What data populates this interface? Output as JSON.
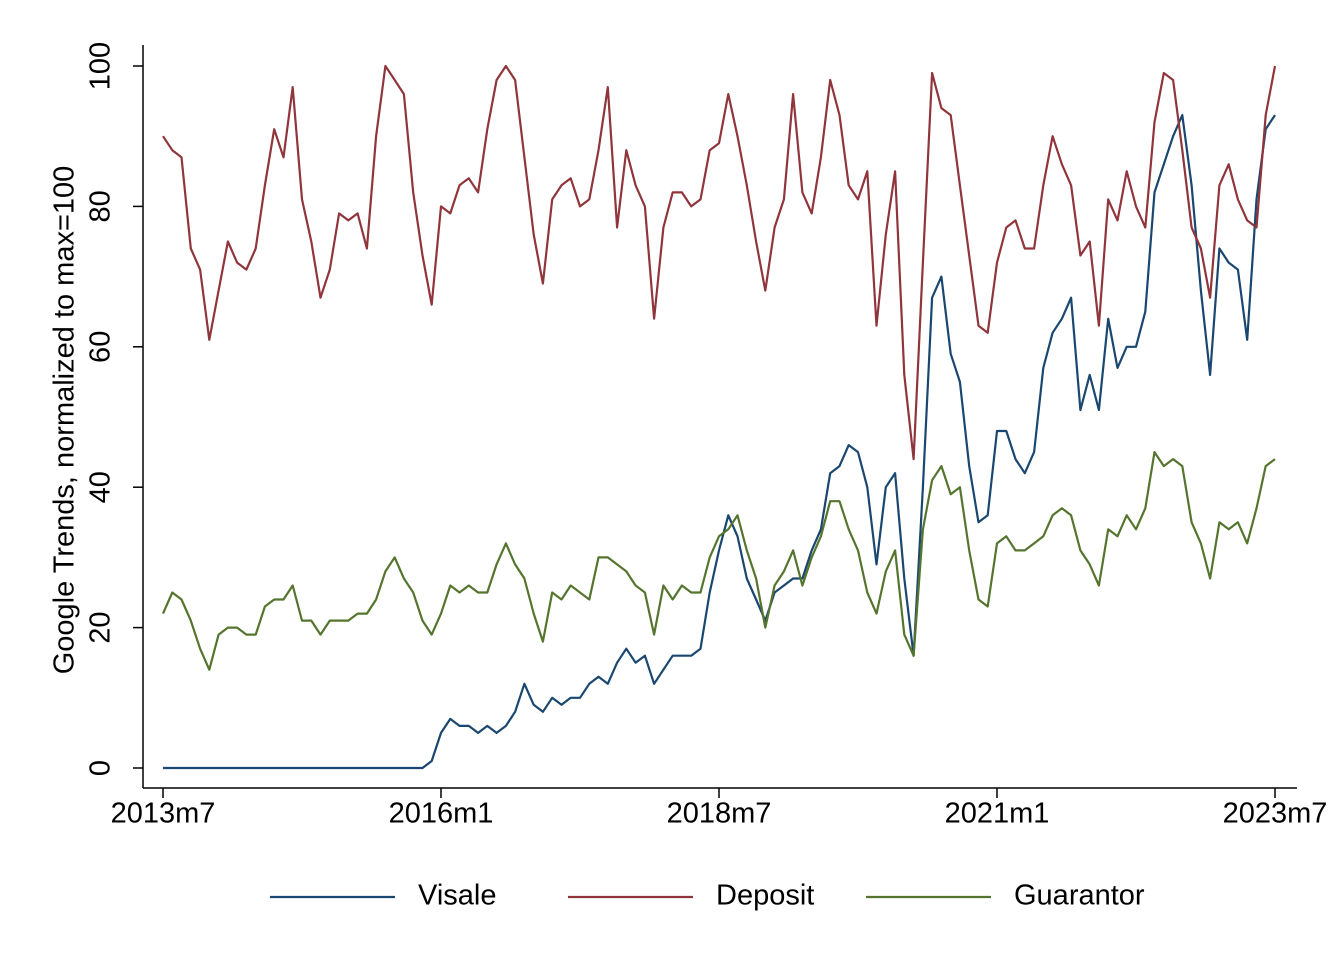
{
  "chart_data": {
    "type": "line",
    "y_label": "Google Trends, normalized to max=100",
    "x": [
      "2013m7",
      "2013m8",
      "2013m9",
      "2013m10",
      "2013m11",
      "2013m12",
      "2014m1",
      "2014m2",
      "2014m3",
      "2014m4",
      "2014m5",
      "2014m6",
      "2014m7",
      "2014m8",
      "2014m9",
      "2014m10",
      "2014m11",
      "2014m12",
      "2015m1",
      "2015m2",
      "2015m3",
      "2015m4",
      "2015m5",
      "2015m6",
      "2015m7",
      "2015m8",
      "2015m9",
      "2015m10",
      "2015m11",
      "2015m12",
      "2016m1",
      "2016m2",
      "2016m3",
      "2016m4",
      "2016m5",
      "2016m6",
      "2016m7",
      "2016m8",
      "2016m9",
      "2016m10",
      "2016m11",
      "2016m12",
      "2017m1",
      "2017m2",
      "2017m3",
      "2017m4",
      "2017m5",
      "2017m6",
      "2017m7",
      "2017m8",
      "2017m9",
      "2017m10",
      "2017m11",
      "2017m12",
      "2018m1",
      "2018m2",
      "2018m3",
      "2018m4",
      "2018m5",
      "2018m6",
      "2018m7",
      "2018m8",
      "2018m9",
      "2018m10",
      "2018m11",
      "2018m12",
      "2019m1",
      "2019m2",
      "2019m3",
      "2019m4",
      "2019m5",
      "2019m6",
      "2019m7",
      "2019m8",
      "2019m9",
      "2019m10",
      "2019m11",
      "2019m12",
      "2020m1",
      "2020m2",
      "2020m3",
      "2020m4",
      "2020m5",
      "2020m6",
      "2020m7",
      "2020m8",
      "2020m9",
      "2020m10",
      "2020m11",
      "2020m12",
      "2021m1",
      "2021m2",
      "2021m3",
      "2021m4",
      "2021m5",
      "2021m6",
      "2021m7",
      "2021m8",
      "2021m9",
      "2021m10",
      "2021m11",
      "2021m12",
      "2022m1",
      "2022m2",
      "2022m3",
      "2022m4",
      "2022m5",
      "2022m6",
      "2022m7",
      "2022m8",
      "2022m9",
      "2022m10",
      "2022m11",
      "2022m12",
      "2023m1",
      "2023m2",
      "2023m3",
      "2023m4",
      "2023m5",
      "2023m6",
      "2023m7"
    ],
    "xticks": [
      "2013m7",
      "2016m1",
      "2018m7",
      "2021m1",
      "2023m7"
    ],
    "ylim": [
      0,
      100
    ],
    "yticks": [
      0,
      20,
      40,
      60,
      80,
      100
    ],
    "series": [
      {
        "name": "Visale",
        "color": "#1a476f",
        "values": [
          0,
          0,
          0,
          0,
          0,
          0,
          0,
          0,
          0,
          0,
          0,
          0,
          0,
          0,
          0,
          0,
          0,
          0,
          0,
          0,
          0,
          0,
          0,
          0,
          0,
          0,
          0,
          0,
          0,
          1,
          5,
          7,
          6,
          6,
          5,
          6,
          5,
          6,
          8,
          12,
          9,
          8,
          10,
          9,
          10,
          10,
          12,
          13,
          12,
          15,
          17,
          15,
          16,
          12,
          14,
          16,
          16,
          16,
          17,
          25,
          31,
          36,
          33,
          27,
          24,
          21,
          25,
          26,
          27,
          27,
          31,
          34,
          42,
          43,
          46,
          45,
          40,
          29,
          40,
          42,
          27,
          16,
          40,
          67,
          70,
          59,
          55,
          43,
          35,
          36,
          48,
          48,
          44,
          42,
          45,
          57,
          62,
          64,
          67,
          51,
          56,
          51,
          64,
          57,
          60,
          60,
          65,
          82,
          86,
          90,
          93,
          83,
          68,
          56,
          74,
          72,
          71,
          61,
          81,
          91,
          93
        ]
      },
      {
        "name": "Deposit",
        "color": "#90353b",
        "values": [
          90,
          88,
          87,
          74,
          71,
          61,
          68,
          75,
          72,
          71,
          74,
          83,
          91,
          87,
          97,
          81,
          75,
          67,
          71,
          79,
          78,
          79,
          74,
          90,
          100,
          98,
          96,
          82,
          73,
          66,
          80,
          79,
          83,
          84,
          82,
          91,
          98,
          100,
          98,
          87,
          76,
          69,
          81,
          83,
          84,
          80,
          81,
          88,
          97,
          77,
          88,
          83,
          80,
          64,
          77,
          82,
          82,
          80,
          81,
          88,
          89,
          96,
          90,
          83,
          75,
          68,
          77,
          81,
          96,
          82,
          79,
          87,
          98,
          93,
          83,
          81,
          85,
          63,
          76,
          85,
          56,
          44,
          72,
          99,
          94,
          93,
          83,
          73,
          63,
          62,
          72,
          77,
          78,
          74,
          74,
          83,
          90,
          86,
          83,
          73,
          75,
          63,
          81,
          78,
          85,
          80,
          77,
          92,
          99,
          98,
          88,
          77,
          74,
          67,
          83,
          86,
          81,
          78,
          77,
          93,
          100
        ]
      },
      {
        "name": "Guarantor",
        "color": "#55752f",
        "values": [
          22,
          25,
          24,
          21,
          17,
          14,
          19,
          20,
          20,
          19,
          19,
          23,
          24,
          24,
          26,
          21,
          21,
          19,
          21,
          21,
          21,
          22,
          22,
          24,
          28,
          30,
          27,
          25,
          21,
          19,
          22,
          26,
          25,
          26,
          25,
          25,
          29,
          32,
          29,
          27,
          22,
          18,
          25,
          24,
          26,
          25,
          24,
          30,
          30,
          29,
          28,
          26,
          25,
          19,
          26,
          24,
          26,
          25,
          25,
          30,
          33,
          34,
          36,
          31,
          27,
          20,
          26,
          28,
          31,
          26,
          30,
          33,
          38,
          38,
          34,
          31,
          25,
          22,
          28,
          31,
          19,
          16,
          34,
          41,
          43,
          39,
          40,
          31,
          24,
          23,
          32,
          33,
          31,
          31,
          32,
          33,
          36,
          37,
          36,
          31,
          29,
          26,
          34,
          33,
          36,
          34,
          37,
          45,
          43,
          44,
          43,
          35,
          32,
          27,
          35,
          34,
          35,
          32,
          37,
          43,
          44
        ]
      }
    ]
  }
}
